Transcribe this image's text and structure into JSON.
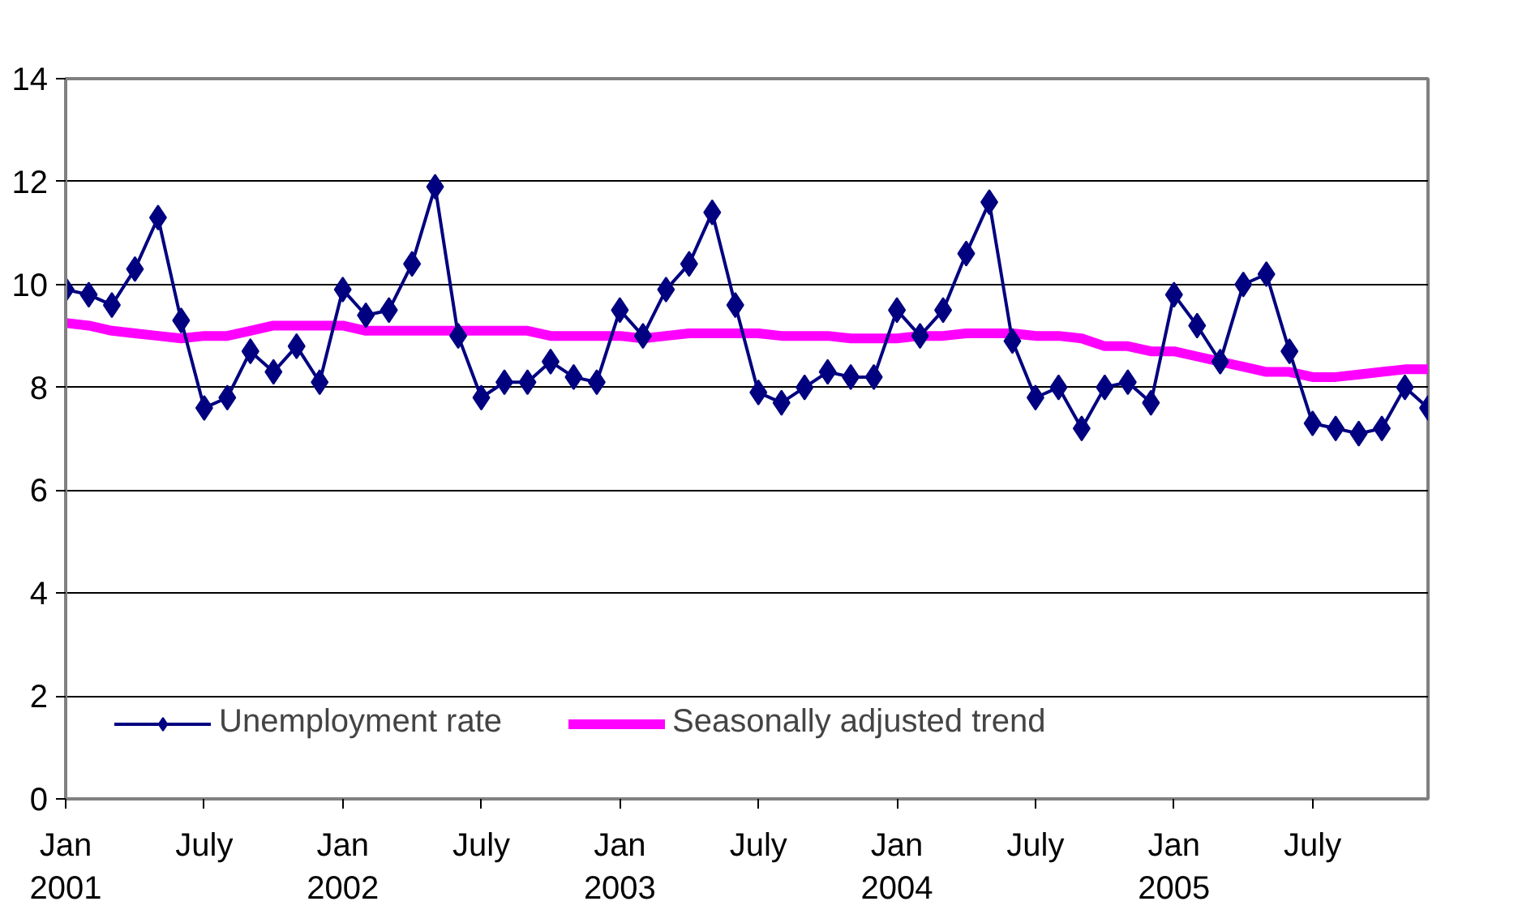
{
  "chart_data": {
    "type": "line",
    "categories": [
      "Jan\n2001",
      null,
      null,
      null,
      null,
      null,
      "July",
      null,
      null,
      null,
      null,
      null,
      "Jan\n2002",
      null,
      null,
      null,
      null,
      null,
      "July",
      null,
      null,
      null,
      null,
      null,
      "Jan\n2003",
      null,
      null,
      null,
      null,
      null,
      "July",
      null,
      null,
      null,
      null,
      null,
      "Jan\n2004",
      null,
      null,
      null,
      null,
      null,
      "July",
      null,
      null,
      null,
      null,
      null,
      "Jan\n2005",
      null,
      null,
      null,
      null,
      null,
      "July",
      null,
      null,
      null,
      null,
      null
    ],
    "series": [
      {
        "name": "Unemployment rate",
        "color": "#000080",
        "marker": "diamond",
        "values": [
          9.9,
          9.8,
          9.6,
          10.3,
          11.3,
          9.3,
          7.6,
          7.8,
          8.7,
          8.3,
          8.8,
          8.1,
          9.9,
          9.4,
          9.5,
          10.4,
          11.9,
          9.0,
          7.8,
          8.1,
          8.1,
          8.5,
          8.2,
          8.1,
          9.5,
          9.0,
          9.9,
          10.4,
          11.4,
          9.6,
          7.9,
          7.7,
          8.0,
          8.3,
          8.2,
          8.2,
          9.5,
          9.0,
          9.5,
          10.6,
          11.6,
          8.9,
          7.8,
          8.0,
          7.2,
          8.0,
          8.1,
          7.7,
          9.8,
          9.2,
          8.5,
          10.0,
          10.2,
          8.7,
          7.3,
          7.2,
          7.1,
          7.2,
          8.0,
          7.6
        ]
      },
      {
        "name": "Seasonally adjusted trend",
        "color": "#ff00ff",
        "marker": "none",
        "values": [
          9.25,
          9.2,
          9.1,
          9.05,
          9.0,
          8.95,
          9.0,
          9.0,
          9.1,
          9.2,
          9.2,
          9.2,
          9.2,
          9.1,
          9.1,
          9.1,
          9.1,
          9.1,
          9.1,
          9.1,
          9.1,
          9.0,
          9.0,
          9.0,
          9.0,
          8.95,
          9.0,
          9.05,
          9.05,
          9.05,
          9.05,
          9.0,
          9.0,
          9.0,
          8.95,
          8.95,
          8.95,
          9.0,
          9.0,
          9.05,
          9.05,
          9.05,
          9.0,
          9.0,
          8.95,
          8.8,
          8.8,
          8.7,
          8.7,
          8.6,
          8.5,
          8.4,
          8.3,
          8.3,
          8.2,
          8.2,
          8.25,
          8.3,
          8.35,
          8.35
        ]
      }
    ],
    "ylim": [
      0,
      14
    ],
    "yticks": [
      0,
      2,
      4,
      6,
      8,
      10,
      12,
      14
    ],
    "grid": "y",
    "legend": "bottom",
    "line_style": "solid"
  }
}
